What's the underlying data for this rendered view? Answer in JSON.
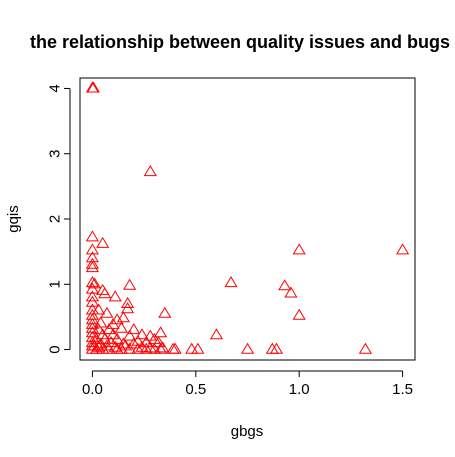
{
  "chart_data": {
    "type": "scatter",
    "title": "the relationship between quality issues and bugs",
    "xlabel": "gbgs",
    "ylabel": "gqis",
    "xlim": [
      -0.06,
      1.56
    ],
    "ylim": [
      -0.16,
      4.16
    ],
    "xticks": [
      0,
      0.5,
      1.0,
      1.5
    ],
    "xtick_labels": [
      "0.0",
      "0.5",
      "1.0",
      "1.5"
    ],
    "yticks": [
      0,
      1,
      2,
      3,
      4
    ],
    "ytick_labels": [
      "0",
      "1",
      "2",
      "3",
      "4"
    ],
    "grid": false,
    "marker": "triangle-open",
    "color": "#ff0000",
    "points": [
      [
        0,
        4
      ],
      [
        0.005,
        4
      ],
      [
        0.28,
        2.72
      ],
      [
        0,
        1.72
      ],
      [
        0.05,
        1.62
      ],
      [
        0,
        1.52
      ],
      [
        0,
        1.4
      ],
      [
        0,
        1.3
      ],
      [
        0,
        1.25
      ],
      [
        1.0,
        1.52
      ],
      [
        1.5,
        1.52
      ],
      [
        0,
        1.02
      ],
      [
        0.01,
        1.0
      ],
      [
        0.18,
        0.98
      ],
      [
        0.67,
        1.02
      ],
      [
        0.93,
        0.97
      ],
      [
        0.96,
        0.86
      ],
      [
        0,
        0.92
      ],
      [
        0.05,
        0.9
      ],
      [
        0.06,
        0.85
      ],
      [
        0,
        0.8
      ],
      [
        0.11,
        0.8
      ],
      [
        0,
        0.72
      ],
      [
        0.17,
        0.7
      ],
      [
        0.17,
        0.62
      ],
      [
        0,
        0.6
      ],
      [
        0.03,
        0.6
      ],
      [
        0.07,
        0.55
      ],
      [
        0,
        0.52
      ],
      [
        0.35,
        0.55
      ],
      [
        1.0,
        0.52
      ],
      [
        0,
        0.45
      ],
      [
        0.12,
        0.45
      ],
      [
        0.15,
        0.48
      ],
      [
        0.04,
        0.4
      ],
      [
        0,
        0.38
      ],
      [
        0.1,
        0.38
      ],
      [
        0,
        0.32
      ],
      [
        0.03,
        0.3
      ],
      [
        0.08,
        0.3
      ],
      [
        0.14,
        0.32
      ],
      [
        0.2,
        0.3
      ],
      [
        0,
        0.25
      ],
      [
        0.05,
        0.22
      ],
      [
        0.1,
        0.22
      ],
      [
        0.18,
        0.2
      ],
      [
        0.24,
        0.22
      ],
      [
        0.28,
        0.2
      ],
      [
        0.33,
        0.25
      ],
      [
        0.6,
        0.22
      ],
      [
        0,
        0.18
      ],
      [
        0.02,
        0.15
      ],
      [
        0.06,
        0.15
      ],
      [
        0.12,
        0.15
      ],
      [
        0.22,
        0.12
      ],
      [
        0.3,
        0.15
      ],
      [
        0,
        0.1
      ],
      [
        0.04,
        0.08
      ],
      [
        0.09,
        0.1
      ],
      [
        0.15,
        0.08
      ],
      [
        0.2,
        0.08
      ],
      [
        0.26,
        0.1
      ],
      [
        0.32,
        0.1
      ],
      [
        0,
        0.05
      ],
      [
        0.01,
        0.05
      ],
      [
        0.03,
        0.03
      ],
      [
        0.07,
        0.05
      ],
      [
        0.11,
        0.03
      ],
      [
        0.16,
        0.05
      ],
      [
        0.24,
        0.03
      ],
      [
        0.28,
        0.02
      ],
      [
        0.34,
        0.02
      ],
      [
        0,
        0
      ],
      [
        0.02,
        0
      ],
      [
        0.05,
        0
      ],
      [
        0.08,
        0
      ],
      [
        0.12,
        0
      ],
      [
        0.14,
        0
      ],
      [
        0.18,
        0
      ],
      [
        0.22,
        0
      ],
      [
        0.26,
        0
      ],
      [
        0.3,
        0
      ],
      [
        0.33,
        0
      ],
      [
        0.39,
        0
      ],
      [
        0.4,
        0
      ],
      [
        0.48,
        0
      ],
      [
        0.51,
        0
      ],
      [
        0.75,
        0
      ],
      [
        0.87,
        0
      ],
      [
        0.89,
        0
      ],
      [
        1.32,
        0
      ]
    ]
  }
}
